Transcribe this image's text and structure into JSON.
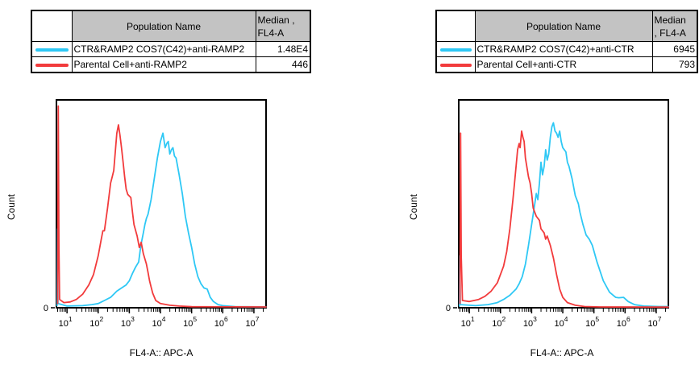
{
  "colors": {
    "cyan": "#2ec8f5",
    "red": "#f23b3c",
    "table_header_bg": "#c3c3c3",
    "axis": "#000000",
    "background": "#ffffff"
  },
  "panels": [
    {
      "table": {
        "header": {
          "population": "Population Name",
          "median_line1": "Median ,",
          "median_line2": "FL4-A"
        },
        "rows": [
          {
            "color": "cyan",
            "population": "CTR&RAMP2 COS7(C42)+anti-RAMP2",
            "median": "1.48E4"
          },
          {
            "color": "red",
            "population": "Parental Cell+anti-RAMP2",
            "median": "446"
          }
        ]
      },
      "axes": {
        "ylabel": "Count",
        "xlabel": "FL4-A:: APC-A",
        "y_zero": "0"
      }
    },
    {
      "table": {
        "header": {
          "population": "Population Name",
          "median_line1": "Median",
          "median_line2": ", FL4-A"
        },
        "rows": [
          {
            "color": "cyan",
            "population": "CTR&RAMP2 COS7(C42)+anti-CTR",
            "median": "6945"
          },
          {
            "color": "red",
            "population": "Parental Cell+anti-CTR",
            "median": "793"
          }
        ]
      },
      "axes": {
        "ylabel": "Count",
        "xlabel": "FL4-A:: APC-A",
        "y_zero": "0"
      }
    }
  ],
  "chart_data": [
    {
      "type": "line",
      "title": "",
      "xlabel": "FL4-A:: APC-A",
      "ylabel": "Count",
      "x_scale": "log10",
      "x_range_decades": [
        0.66,
        7.39
      ],
      "x_tick_base": "10",
      "x_tick_exponents": [
        "1",
        "2",
        "3",
        "4",
        "5",
        "6",
        "7"
      ],
      "y_axis_zero_label": "0",
      "grid": false,
      "legend_position": "table-above",
      "series": [
        {
          "name": "CTR&RAMP2 COS7(C42)+anti-RAMP2",
          "color": "cyan",
          "median": "1.48E4",
          "points": [
            [
              0.68,
              0.01
            ],
            [
              0.695,
              0.38
            ],
            [
              0.71,
              0.02
            ],
            [
              1.0,
              0.008
            ],
            [
              1.5,
              0.01
            ],
            [
              1.8,
              0.015
            ],
            [
              2.0,
              0.02
            ],
            [
              2.2,
              0.035
            ],
            [
              2.4,
              0.05
            ],
            [
              2.6,
              0.08
            ],
            [
              2.75,
              0.095
            ],
            [
              2.9,
              0.11
            ],
            [
              3.0,
              0.13
            ],
            [
              3.1,
              0.165
            ],
            [
              3.2,
              0.195
            ],
            [
              3.3,
              0.22
            ],
            [
              3.37,
              0.3
            ],
            [
              3.45,
              0.36
            ],
            [
              3.5,
              0.4
            ],
            [
              3.55,
              0.43
            ],
            [
              3.6,
              0.45
            ],
            [
              3.7,
              0.52
            ],
            [
              3.8,
              0.62
            ],
            [
              3.9,
              0.72
            ],
            [
              4.0,
              0.8
            ],
            [
              4.08,
              0.84
            ],
            [
              4.15,
              0.77
            ],
            [
              4.2,
              0.79
            ],
            [
              4.25,
              0.8
            ],
            [
              4.3,
              0.74
            ],
            [
              4.35,
              0.76
            ],
            [
              4.4,
              0.77
            ],
            [
              4.45,
              0.73
            ],
            [
              4.5,
              0.72
            ],
            [
              4.6,
              0.64
            ],
            [
              4.7,
              0.55
            ],
            [
              4.8,
              0.44
            ],
            [
              4.9,
              0.36
            ],
            [
              5.0,
              0.29
            ],
            [
              5.1,
              0.21
            ],
            [
              5.2,
              0.15
            ],
            [
              5.3,
              0.115
            ],
            [
              5.4,
              0.095
            ],
            [
              5.5,
              0.09
            ],
            [
              5.6,
              0.05
            ],
            [
              5.7,
              0.03
            ],
            [
              5.85,
              0.015
            ],
            [
              6.0,
              0.01
            ],
            [
              6.4,
              0.005
            ],
            [
              7.39,
              0.004
            ]
          ]
        },
        {
          "name": "Parental Cell+anti-RAMP2",
          "color": "red",
          "median": "446",
          "points": [
            [
              0.7,
              0.02
            ],
            [
              0.72,
              0.97
            ],
            [
              0.74,
              0.3
            ],
            [
              0.76,
              0.04
            ],
            [
              0.9,
              0.025
            ],
            [
              1.1,
              0.028
            ],
            [
              1.3,
              0.04
            ],
            [
              1.5,
              0.065
            ],
            [
              1.7,
              0.11
            ],
            [
              1.85,
              0.16
            ],
            [
              2.0,
              0.25
            ],
            [
              2.1,
              0.33
            ],
            [
              2.15,
              0.37
            ],
            [
              2.2,
              0.37
            ],
            [
              2.3,
              0.48
            ],
            [
              2.4,
              0.6
            ],
            [
              2.45,
              0.63
            ],
            [
              2.5,
              0.66
            ],
            [
              2.55,
              0.75
            ],
            [
              2.6,
              0.84
            ],
            [
              2.65,
              0.88
            ],
            [
              2.7,
              0.83
            ],
            [
              2.75,
              0.77
            ],
            [
              2.8,
              0.7
            ],
            [
              2.85,
              0.63
            ],
            [
              2.9,
              0.57
            ],
            [
              2.95,
              0.545
            ],
            [
              3.05,
              0.53
            ],
            [
              3.1,
              0.46
            ],
            [
              3.15,
              0.4
            ],
            [
              3.25,
              0.345
            ],
            [
              3.32,
              0.29
            ],
            [
              3.38,
              0.315
            ],
            [
              3.45,
              0.26
            ],
            [
              3.55,
              0.21
            ],
            [
              3.6,
              0.17
            ],
            [
              3.65,
              0.13
            ],
            [
              3.7,
              0.1
            ],
            [
              3.75,
              0.07
            ],
            [
              3.85,
              0.035
            ],
            [
              4.0,
              0.02
            ],
            [
              4.3,
              0.012
            ],
            [
              4.6,
              0.008
            ],
            [
              5.0,
              0.005
            ],
            [
              7.39,
              0.004
            ]
          ]
        }
      ]
    },
    {
      "type": "line",
      "title": "",
      "xlabel": "FL4-A:: APC-A",
      "ylabel": "Count",
      "x_scale": "log10",
      "x_range_decades": [
        0.66,
        7.39
      ],
      "x_tick_base": "10",
      "x_tick_exponents": [
        "1",
        "2",
        "3",
        "4",
        "5",
        "6",
        "7"
      ],
      "y_axis_zero_label": "0",
      "grid": false,
      "legend_position": "table-above",
      "series": [
        {
          "name": "CTR&RAMP2 COS7(C42)+anti-CTR",
          "color": "cyan",
          "median": "6945",
          "points": [
            [
              0.68,
              0.008
            ],
            [
              0.695,
              0.25
            ],
            [
              0.71,
              0.015
            ],
            [
              1.2,
              0.01
            ],
            [
              1.6,
              0.015
            ],
            [
              1.9,
              0.025
            ],
            [
              2.1,
              0.04
            ],
            [
              2.3,
              0.06
            ],
            [
              2.5,
              0.09
            ],
            [
              2.6,
              0.115
            ],
            [
              2.7,
              0.15
            ],
            [
              2.8,
              0.21
            ],
            [
              2.9,
              0.3
            ],
            [
              3.0,
              0.4
            ],
            [
              3.1,
              0.5
            ],
            [
              3.15,
              0.55
            ],
            [
              3.2,
              0.52
            ],
            [
              3.25,
              0.6
            ],
            [
              3.3,
              0.7
            ],
            [
              3.35,
              0.64
            ],
            [
              3.4,
              0.68
            ],
            [
              3.45,
              0.76
            ],
            [
              3.5,
              0.71
            ],
            [
              3.55,
              0.74
            ],
            [
              3.6,
              0.82
            ],
            [
              3.65,
              0.87
            ],
            [
              3.7,
              0.89
            ],
            [
              3.75,
              0.85
            ],
            [
              3.8,
              0.84
            ],
            [
              3.85,
              0.82
            ],
            [
              3.9,
              0.85
            ],
            [
              3.95,
              0.8
            ],
            [
              4.0,
              0.77
            ],
            [
              4.1,
              0.75
            ],
            [
              4.15,
              0.7
            ],
            [
              4.2,
              0.68
            ],
            [
              4.3,
              0.62
            ],
            [
              4.4,
              0.54
            ],
            [
              4.5,
              0.5
            ],
            [
              4.55,
              0.46
            ],
            [
              4.65,
              0.4
            ],
            [
              4.75,
              0.35
            ],
            [
              4.85,
              0.33
            ],
            [
              4.95,
              0.3
            ],
            [
              5.1,
              0.22
            ],
            [
              5.3,
              0.13
            ],
            [
              5.5,
              0.075
            ],
            [
              5.7,
              0.05
            ],
            [
              5.8,
              0.048
            ],
            [
              5.95,
              0.05
            ],
            [
              6.1,
              0.03
            ],
            [
              6.3,
              0.015
            ],
            [
              6.6,
              0.008
            ],
            [
              7.1,
              0.006
            ],
            [
              7.39,
              0.006
            ]
          ]
        },
        {
          "name": "Parental Cell+anti-CTR",
          "color": "red",
          "median": "793",
          "points": [
            [
              0.7,
              0.02
            ],
            [
              0.72,
              0.84
            ],
            [
              0.74,
              0.25
            ],
            [
              0.78,
              0.035
            ],
            [
              1.0,
              0.03
            ],
            [
              1.3,
              0.04
            ],
            [
              1.5,
              0.055
            ],
            [
              1.7,
              0.08
            ],
            [
              1.9,
              0.12
            ],
            [
              2.1,
              0.2
            ],
            [
              2.2,
              0.27
            ],
            [
              2.3,
              0.38
            ],
            [
              2.4,
              0.52
            ],
            [
              2.45,
              0.6
            ],
            [
              2.5,
              0.68
            ],
            [
              2.55,
              0.76
            ],
            [
              2.6,
              0.79
            ],
            [
              2.63,
              0.77
            ],
            [
              2.68,
              0.85
            ],
            [
              2.72,
              0.82
            ],
            [
              2.76,
              0.8
            ],
            [
              2.8,
              0.72
            ],
            [
              2.9,
              0.63
            ],
            [
              2.95,
              0.6
            ],
            [
              3.0,
              0.55
            ],
            [
              3.05,
              0.48
            ],
            [
              3.15,
              0.44
            ],
            [
              3.25,
              0.42
            ],
            [
              3.3,
              0.38
            ],
            [
              3.4,
              0.36
            ],
            [
              3.45,
              0.33
            ],
            [
              3.5,
              0.345
            ],
            [
              3.6,
              0.3
            ],
            [
              3.7,
              0.24
            ],
            [
              3.8,
              0.16
            ],
            [
              3.9,
              0.09
            ],
            [
              4.0,
              0.05
            ],
            [
              4.15,
              0.025
            ],
            [
              4.4,
              0.012
            ],
            [
              4.7,
              0.006
            ],
            [
              5.2,
              0.004
            ],
            [
              7.39,
              0.003
            ]
          ]
        }
      ]
    }
  ]
}
